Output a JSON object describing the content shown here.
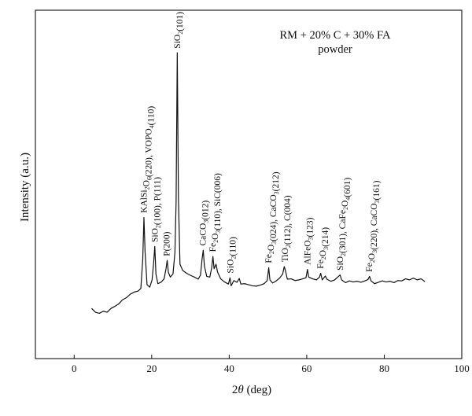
{
  "chart_data": {
    "type": "line",
    "title_lines": [
      "RM + 20% C + 30% FA",
      "powder"
    ],
    "xlabel": {
      "pre": "2",
      "italic": "θ",
      "post": " (deg)"
    },
    "ylabel": "Intensity (a.u.)",
    "xlim": [
      -10,
      100
    ],
    "xticks": [
      0,
      20,
      40,
      60,
      80,
      100
    ],
    "ylim": [
      0,
      100
    ],
    "grid": false,
    "series": [
      {
        "points": [
          [
            4.5,
            14.4
          ],
          [
            5.5,
            13.3
          ],
          [
            6.5,
            13.0
          ],
          [
            7.5,
            13.6
          ],
          [
            8.5,
            13.3
          ],
          [
            9.5,
            14.4
          ],
          [
            10.5,
            15.0
          ],
          [
            11.5,
            15.7
          ],
          [
            12.5,
            16.9
          ],
          [
            13.5,
            17.5
          ],
          [
            14.5,
            18.5
          ],
          [
            15.5,
            19.1
          ],
          [
            16.5,
            19.4
          ],
          [
            17.2,
            20.1
          ],
          [
            17.7,
            28.6
          ],
          [
            18.0,
            40.5
          ],
          [
            18.3,
            30.6
          ],
          [
            18.8,
            21.2
          ],
          [
            19.5,
            20.5
          ],
          [
            20.1,
            22.6
          ],
          [
            20.5,
            27.4
          ],
          [
            20.8,
            32.2
          ],
          [
            21.1,
            24.2
          ],
          [
            21.6,
            21.5
          ],
          [
            22.5,
            22.0
          ],
          [
            23.2,
            22.9
          ],
          [
            23.7,
            25.8
          ],
          [
            24.0,
            28.2
          ],
          [
            24.3,
            24.8
          ],
          [
            24.8,
            23.4
          ],
          [
            25.5,
            24.3
          ],
          [
            26.0,
            30.5
          ],
          [
            26.3,
            45.0
          ],
          [
            26.6,
            87.8
          ],
          [
            26.9,
            46.0
          ],
          [
            27.3,
            27.1
          ],
          [
            28.0,
            25.3
          ],
          [
            29.0,
            24.5
          ],
          [
            30.0,
            23.9
          ],
          [
            31.0,
            23.4
          ],
          [
            32.0,
            22.8
          ],
          [
            32.6,
            24.0
          ],
          [
            33.0,
            28.6
          ],
          [
            33.3,
            31.1
          ],
          [
            33.6,
            26.6
          ],
          [
            34.2,
            23.6
          ],
          [
            35.0,
            23.4
          ],
          [
            35.5,
            26.2
          ],
          [
            35.8,
            29.3
          ],
          [
            36.1,
            25.8
          ],
          [
            36.6,
            27.1
          ],
          [
            37.0,
            24.8
          ],
          [
            37.8,
            22.9
          ],
          [
            38.8,
            22.0
          ],
          [
            39.8,
            21.4
          ],
          [
            40.2,
            23.2
          ],
          [
            40.5,
            20.9
          ],
          [
            41.2,
            22.4
          ],
          [
            42.0,
            21.9
          ],
          [
            42.6,
            23.0
          ],
          [
            43.0,
            21.4
          ],
          [
            44.0,
            21.5
          ],
          [
            45.0,
            21.2
          ],
          [
            46.0,
            20.9
          ],
          [
            47.0,
            20.8
          ],
          [
            48.0,
            21.1
          ],
          [
            49.0,
            21.5
          ],
          [
            49.8,
            22.4
          ],
          [
            50.2,
            26.1
          ],
          [
            50.5,
            22.6
          ],
          [
            51.2,
            21.7
          ],
          [
            52.0,
            22.2
          ],
          [
            53.0,
            23.1
          ],
          [
            53.8,
            24.3
          ],
          [
            54.2,
            26.4
          ],
          [
            54.5,
            25.3
          ],
          [
            55.0,
            22.8
          ],
          [
            56.0,
            22.9
          ],
          [
            57.0,
            22.4
          ],
          [
            58.0,
            22.6
          ],
          [
            59.0,
            22.9
          ],
          [
            59.8,
            23.2
          ],
          [
            60.2,
            25.6
          ],
          [
            60.5,
            23.4
          ],
          [
            61.5,
            22.9
          ],
          [
            62.5,
            22.6
          ],
          [
            63.3,
            23.4
          ],
          [
            63.6,
            24.5
          ],
          [
            64.0,
            22.6
          ],
          [
            64.8,
            23.7
          ],
          [
            65.2,
            22.8
          ],
          [
            66.2,
            22.2
          ],
          [
            67.2,
            22.6
          ],
          [
            68.0,
            23.4
          ],
          [
            68.6,
            24.0
          ],
          [
            69.0,
            22.6
          ],
          [
            70.0,
            21.8
          ],
          [
            71.0,
            22.3
          ],
          [
            72.0,
            22.0
          ],
          [
            73.0,
            22.2
          ],
          [
            74.0,
            21.9
          ],
          [
            75.0,
            22.3
          ],
          [
            75.8,
            22.7
          ],
          [
            76.2,
            23.6
          ],
          [
            76.6,
            22.3
          ],
          [
            77.5,
            21.5
          ],
          [
            78.5,
            21.9
          ],
          [
            79.5,
            22.3
          ],
          [
            80.5,
            22.0
          ],
          [
            81.5,
            22.2
          ],
          [
            82.5,
            21.8
          ],
          [
            83.5,
            22.4
          ],
          [
            84.5,
            22.3
          ],
          [
            85.5,
            22.9
          ],
          [
            86.5,
            22.6
          ],
          [
            87.5,
            23.1
          ],
          [
            88.5,
            22.6
          ],
          [
            89.5,
            22.9
          ],
          [
            90.5,
            22.1
          ]
        ]
      }
    ],
    "annotations": [
      {
        "x": 18.0,
        "y": 41.8,
        "text": [
          [
            "KAlSi",
            false
          ],
          [
            "2",
            true
          ],
          [
            "O",
            false
          ],
          [
            "6",
            true
          ],
          [
            "(220), VOPO",
            false
          ],
          [
            "4",
            true
          ],
          [
            "(110)",
            false
          ]
        ]
      },
      {
        "x": 20.8,
        "y": 33.4,
        "text": [
          [
            "SiO",
            false
          ],
          [
            "2",
            true
          ],
          [
            "(100), P(111)",
            false
          ]
        ]
      },
      {
        "x": 23.9,
        "y": 29.4,
        "text": [
          [
            "P(200)",
            false
          ]
        ]
      },
      {
        "x": 26.6,
        "y": 89.0,
        "text": [
          [
            "SiO",
            false
          ],
          [
            "2",
            true
          ],
          [
            "(101)",
            false
          ]
        ]
      },
      {
        "x": 33.2,
        "y": 32.4,
        "text": [
          [
            "CaCO",
            false
          ],
          [
            "3",
            true
          ],
          [
            "(012)",
            false
          ]
        ]
      },
      {
        "x": 35.8,
        "y": 30.6,
        "text": [
          [
            "Fe",
            false
          ],
          [
            "2",
            true
          ],
          [
            "O",
            false
          ],
          [
            "3",
            true
          ],
          [
            "(110), SiC(006)",
            false
          ]
        ]
      },
      {
        "x": 40.3,
        "y": 24.5,
        "text": [
          [
            "SiO",
            false
          ],
          [
            "2",
            true
          ],
          [
            "(110)",
            false
          ]
        ]
      },
      {
        "x": 50.2,
        "y": 27.4,
        "text": [
          [
            "Fe",
            false
          ],
          [
            "2",
            true
          ],
          [
            "O",
            false
          ],
          [
            "3",
            true
          ],
          [
            "(024), CaCO",
            false
          ],
          [
            "3",
            true
          ],
          [
            "(212)",
            false
          ]
        ]
      },
      {
        "x": 54.4,
        "y": 27.7,
        "text": [
          [
            "TiO",
            false
          ],
          [
            "2",
            true
          ],
          [
            "(112), C(004)",
            false
          ]
        ]
      },
      {
        "x": 60.2,
        "y": 26.9,
        "text": [
          [
            "AlFeO",
            false
          ],
          [
            "3",
            true
          ],
          [
            "(123)",
            false
          ]
        ]
      },
      {
        "x": 63.6,
        "y": 25.8,
        "text": [
          [
            "Fe",
            false
          ],
          [
            "2",
            true
          ],
          [
            "O",
            false
          ],
          [
            "3",
            true
          ],
          [
            "(214)",
            false
          ]
        ]
      },
      {
        "x": 68.6,
        "y": 25.3,
        "text": [
          [
            "SiO",
            false
          ],
          [
            "2",
            true
          ],
          [
            "(301), CaFe",
            false
          ],
          [
            "2",
            true
          ],
          [
            "O",
            false
          ],
          [
            "4",
            true
          ],
          [
            "(601)",
            false
          ]
        ]
      },
      {
        "x": 76.2,
        "y": 24.9,
        "text": [
          [
            "Fe",
            false
          ],
          [
            "2",
            true
          ],
          [
            "O",
            false
          ],
          [
            "3",
            true
          ],
          [
            "(220), CaCO",
            false
          ],
          [
            "3",
            true
          ],
          [
            "(161)",
            false
          ]
        ]
      }
    ]
  }
}
